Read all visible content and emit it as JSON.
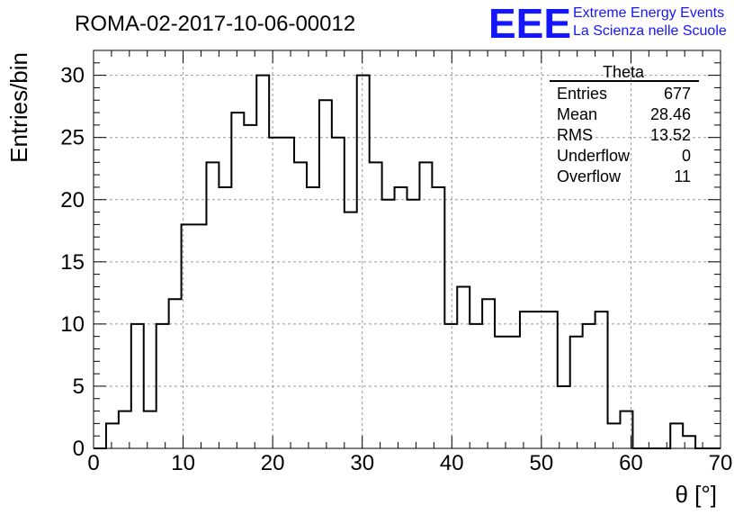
{
  "chart_data": {
    "type": "bar",
    "histogram": true,
    "title": "ROMA-02-2017-10-06-00012",
    "xlabel": "θ [°]",
    "ylabel": "Entries/bin",
    "xlim": [
      0,
      70
    ],
    "ylim": [
      0,
      32
    ],
    "grid": true,
    "bin_width": 1.4,
    "bin_start": 0,
    "values": [
      0,
      2,
      3,
      10,
      3,
      10,
      12,
      18,
      18,
      23,
      21,
      27,
      26,
      30,
      25,
      25,
      23,
      21,
      28,
      25,
      19,
      30,
      23,
      20,
      21,
      20,
      23,
      21,
      10,
      13,
      10,
      12,
      9,
      9,
      11,
      11,
      11,
      5,
      9,
      10,
      11,
      2,
      3,
      0,
      0,
      0,
      2,
      1,
      0,
      0
    ],
    "x_ticks": [
      "0",
      "10",
      "20",
      "30",
      "40",
      "50",
      "60",
      "70"
    ],
    "y_ticks": [
      "0",
      "5",
      "10",
      "15",
      "20",
      "25",
      "30"
    ],
    "x_tick_values": [
      0,
      10,
      20,
      30,
      40,
      50,
      60,
      70
    ],
    "y_tick_values": [
      0,
      5,
      10,
      15,
      20,
      25,
      30
    ],
    "line_color": "#000000",
    "grid_color": "#999999"
  },
  "logo": {
    "mark": "EEE",
    "line1": "Extreme Energy Events",
    "line2": "La Scienza nelle Scuole",
    "color": "#1515ff"
  },
  "stats_box": {
    "title": "Theta",
    "rows": [
      {
        "label": "Entries",
        "value": "677"
      },
      {
        "label": "Mean",
        "value": "28.46"
      },
      {
        "label": "RMS",
        "value": "13.52"
      },
      {
        "label": "Underflow",
        "value": "0"
      },
      {
        "label": "Overflow",
        "value": "11"
      }
    ]
  }
}
